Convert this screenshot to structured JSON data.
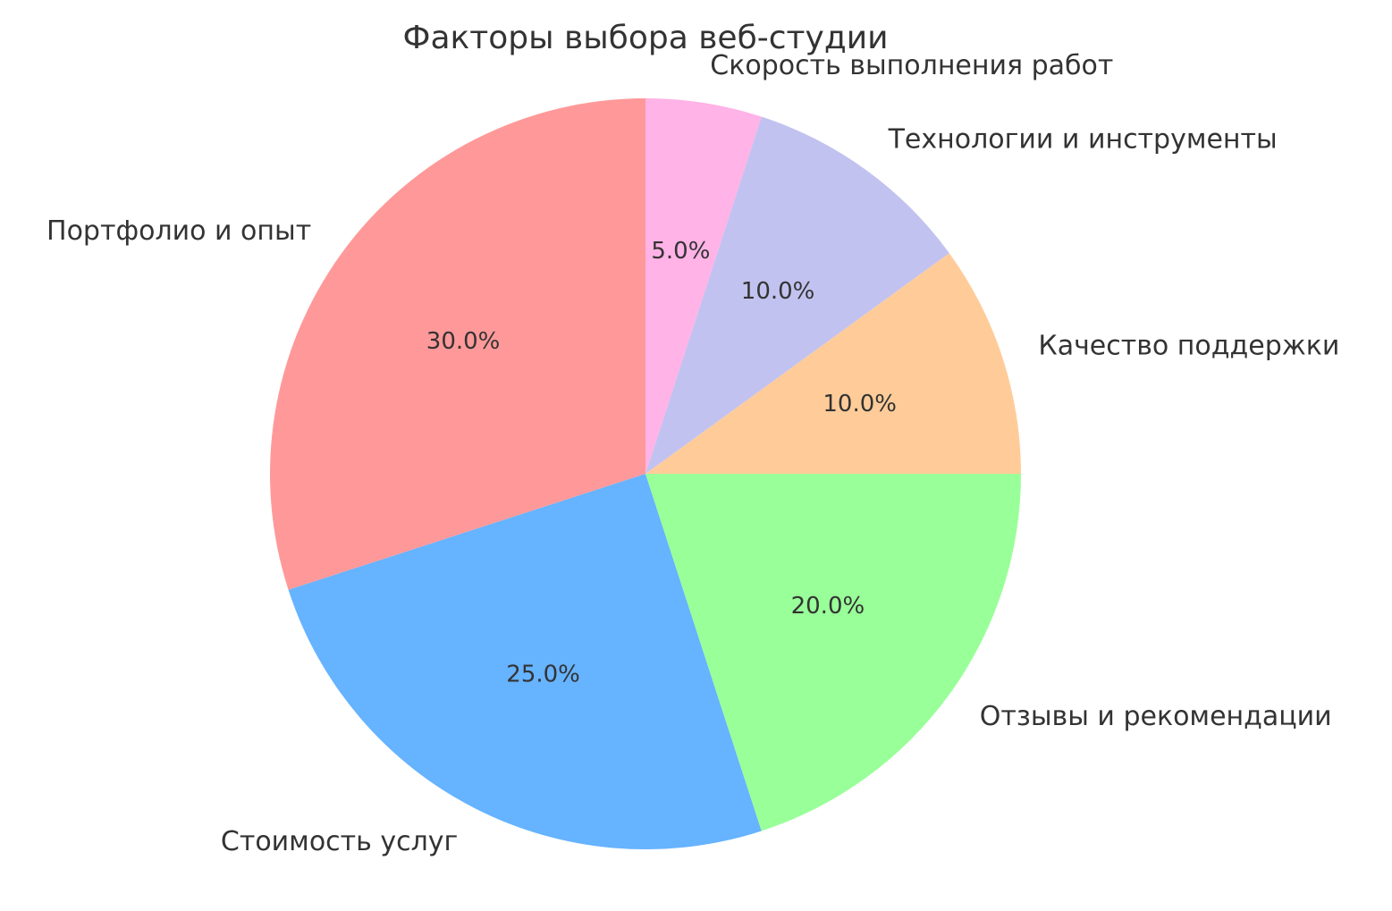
{
  "chart_data": {
    "type": "pie",
    "title": "Факторы выбора веб-студии",
    "labels": [
      "Портфолио и опыт",
      "Стоимость услуг",
      "Отзывы и рекомендации",
      "Качество поддержки",
      "Технологии и инструменты",
      "Скорость выполнения работ"
    ],
    "values": [
      30.0,
      25.0,
      20.0,
      10.0,
      10.0,
      5.0
    ],
    "percent_labels": [
      "30.0%",
      "25.0%",
      "20.0%",
      "10.0%",
      "10.0%",
      "5.0%"
    ],
    "slice_colors": [
      "#ff9999",
      "#66b3ff",
      "#99ff99",
      "#ffcc99",
      "#c2c2f0",
      "#ffb3e6"
    ],
    "start_angle_deg": 90,
    "direction": "counterclockwise",
    "label_radius_ratio": 1.1,
    "percent_radius_ratio": 0.6,
    "text_color": "#333333",
    "background_color": "#ffffff",
    "legend": "none",
    "total": 100.0
  }
}
